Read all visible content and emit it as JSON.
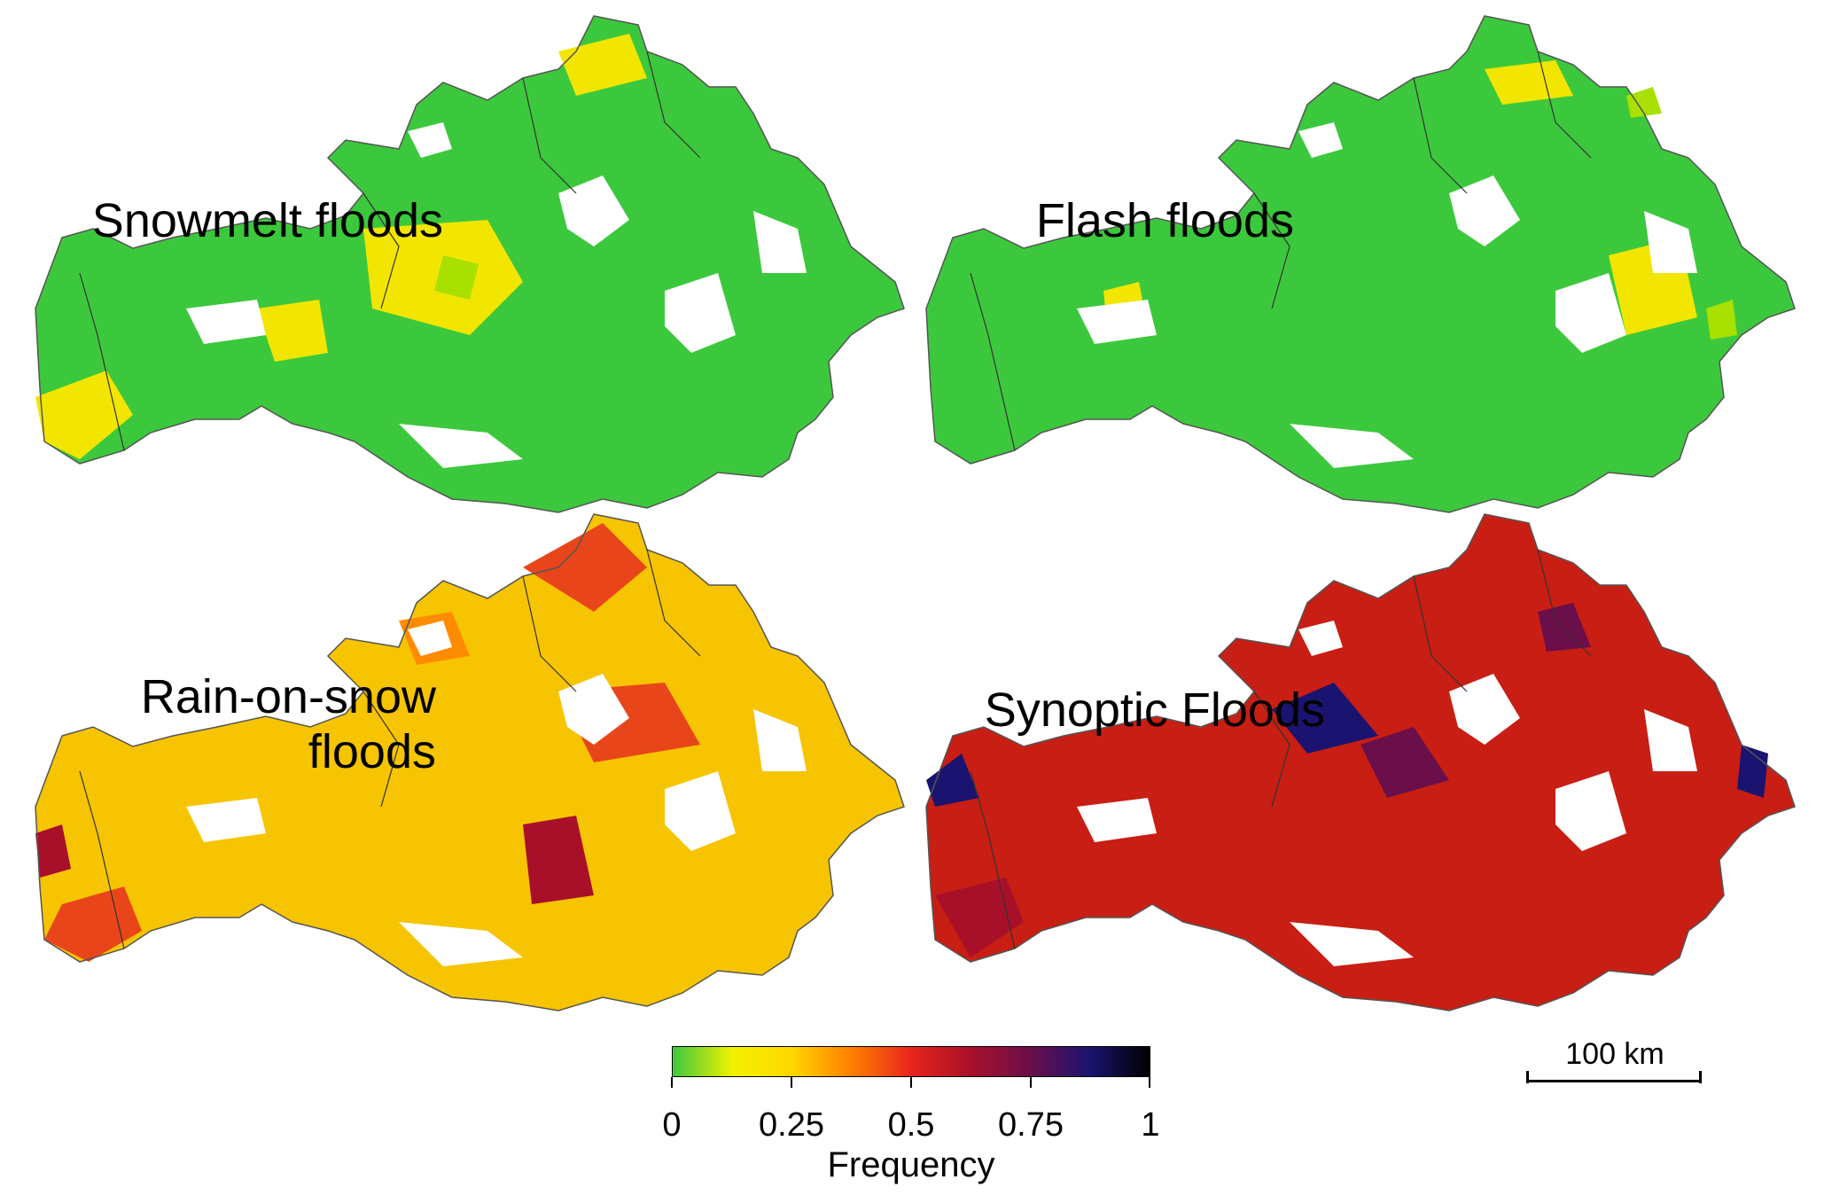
{
  "panels": [
    {
      "id": "snowmelt",
      "title_lines": [
        "Snowmelt floods"
      ],
      "dominant_color": "#3cc83c",
      "accent_color": "#f2e600"
    },
    {
      "id": "flash",
      "title_lines": [
        "Flash floods"
      ],
      "dominant_color": "#3cc83c",
      "accent_color": "#f2e600"
    },
    {
      "id": "rain_on_snow",
      "title_lines": [
        "Rain-on-snow",
        "floods"
      ],
      "dominant_color": "#f6c400",
      "accent_color": "#e8461a"
    },
    {
      "id": "synoptic",
      "title_lines": [
        "Synoptic Floods"
      ],
      "dominant_color": "#c81e14",
      "accent_color": "#1a1470"
    }
  ],
  "legend": {
    "title": "Frequency",
    "ticks": [
      "0",
      "0.25",
      "0.5",
      "0.75",
      "1"
    ],
    "tick_values": [
      0,
      0.25,
      0.5,
      0.75,
      1
    ],
    "colors": [
      "#3cc83c",
      "#f2f200",
      "#ffd700",
      "#ff7f00",
      "#e8251a",
      "#a8102a",
      "#6a0f4a",
      "#1a1470",
      "#000000"
    ]
  },
  "scale_bar": {
    "label": "100 km"
  }
}
